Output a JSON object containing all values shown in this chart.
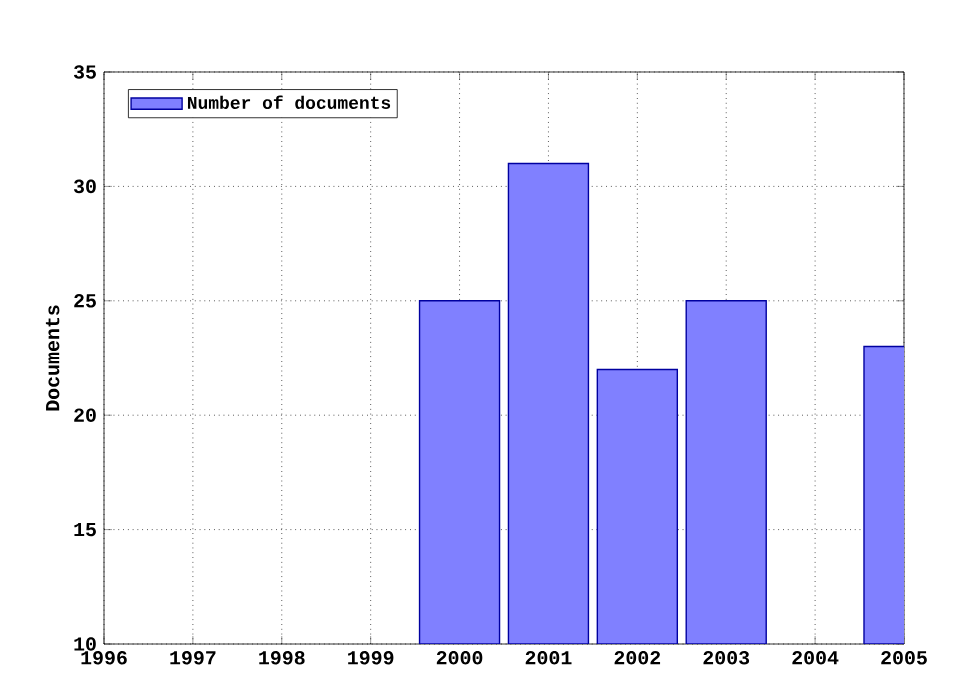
{
  "chart_data": {
    "type": "bar",
    "ylabel": "Documents",
    "x": [
      2000,
      2001,
      2002,
      2003,
      2005
    ],
    "series": [
      {
        "name": "Number of documents",
        "color": "#8080ff",
        "values": [
          25,
          31,
          22,
          25,
          23
        ]
      }
    ],
    "xlim": [
      1996,
      2005
    ],
    "xticks": [
      1996,
      1997,
      1998,
      1999,
      2000,
      2001,
      2002,
      2003,
      2004,
      2005
    ],
    "ylim": [
      10,
      35
    ],
    "yticks": [
      10,
      15,
      20,
      25,
      30,
      35
    ],
    "grid": true,
    "legend": "top left"
  }
}
